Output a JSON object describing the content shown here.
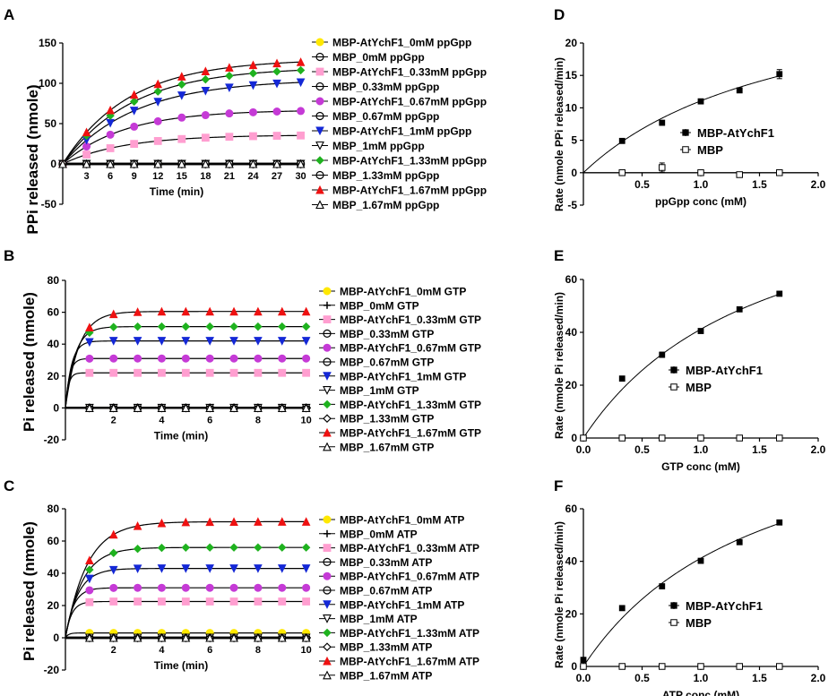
{
  "chart_data": [
    {
      "panel": "A",
      "type": "line",
      "xlabel": "Time (min)",
      "ylabel": "PPi released (nmole)",
      "xlim": [
        0,
        30.5
      ],
      "ylim": [
        -50,
        150
      ],
      "xticks": [
        3,
        6,
        9,
        12,
        15,
        18,
        21,
        24,
        27,
        30
      ],
      "yticks": [
        -50,
        0,
        50,
        100,
        150
      ],
      "x": [
        0,
        3,
        6,
        9,
        12,
        15,
        18,
        21,
        24,
        27,
        30
      ],
      "series": [
        {
          "name": "MBP-AtYchF1_0mM ppGpp",
          "marker": "circle",
          "color": "#ffe800",
          "plateau": 0,
          "k": 0
        },
        {
          "name": "MBP_0mM ppGpp",
          "marker": "circle-line",
          "color": "#000000",
          "plateau": 0,
          "k": 0
        },
        {
          "name": "MBP-AtYchF1_0.33mM ppGpp",
          "marker": "square",
          "color": "#ff9ed0",
          "plateau": 36,
          "k": 0.13
        },
        {
          "name": "MBP_0.33mM ppGpp",
          "marker": "circle-line",
          "color": "#000000",
          "plateau": 0,
          "k": 0
        },
        {
          "name": "MBP-AtYchF1_0.67mM ppGpp",
          "marker": "circle",
          "color": "#c53ad6",
          "plateau": 67,
          "k": 0.13
        },
        {
          "name": "MBP_0.67mM ppGpp",
          "marker": "circle-line",
          "color": "#000000",
          "plateau": 0,
          "k": 0
        },
        {
          "name": "MBP-AtYchF1_1mM ppGpp",
          "marker": "tri-down",
          "color": "#1428d6",
          "plateau": 105,
          "k": 0.11
        },
        {
          "name": "MBP_1mM ppGpp",
          "marker": "tri-down-open",
          "color": "#000000",
          "plateau": 0,
          "k": 0
        },
        {
          "name": "MBP-AtYchF1_1.33mM ppGpp",
          "marker": "diamond",
          "color": "#1fb21f",
          "plateau": 120,
          "k": 0.115
        },
        {
          "name": "MBP_1.33mM ppGpp",
          "marker": "circle-line",
          "color": "#000000",
          "plateau": 0,
          "k": 0
        },
        {
          "name": "MBP-AtYchF1_1.67mM ppGpp",
          "marker": "tri-up",
          "color": "#ee1111",
          "plateau": 130,
          "k": 0.12
        },
        {
          "name": "MBP_1.67mM ppGpp",
          "marker": "tri-up-open",
          "color": "#000000",
          "plateau": 0,
          "k": 0
        }
      ]
    },
    {
      "panel": "B",
      "type": "line",
      "xlabel": "Time (min)",
      "ylabel": "Pi released (nmole)",
      "xlim": [
        0,
        10.2
      ],
      "ylim": [
        -20,
        80
      ],
      "xticks": [
        2,
        4,
        6,
        8,
        10
      ],
      "yticks": [
        -20,
        0,
        20,
        40,
        60,
        80
      ],
      "x": [
        1,
        2,
        3,
        4,
        5,
        6,
        7,
        8,
        9,
        10
      ],
      "series": [
        {
          "name": "MBP-AtYchF1_0mM GTP",
          "marker": "circle",
          "color": "#ffe800",
          "plateau": 0,
          "k": 0
        },
        {
          "name": "MBP_0mM GTP",
          "marker": "plus",
          "color": "#000000",
          "plateau": 0,
          "k": 0
        },
        {
          "name": "MBP-AtYchF1_0.33mM GTP",
          "marker": "square",
          "color": "#ff9ed0",
          "plateau": 22,
          "k": 8
        },
        {
          "name": "MBP_0.33mM GTP",
          "marker": "circle-line",
          "color": "#000000",
          "plateau": 0,
          "k": 0
        },
        {
          "name": "MBP-AtYchF1_0.67mM GTP",
          "marker": "circle",
          "color": "#c53ad6",
          "plateau": 31,
          "k": 6
        },
        {
          "name": "MBP_0.67mM GTP",
          "marker": "circle-line",
          "color": "#000000",
          "plateau": 0,
          "k": 0
        },
        {
          "name": "MBP-AtYchF1_1mM GTP",
          "marker": "tri-down",
          "color": "#1428d6",
          "plateau": 42,
          "k": 4
        },
        {
          "name": "MBP_1mM GTP",
          "marker": "tri-down-open",
          "color": "#000000",
          "plateau": 0,
          "k": 0
        },
        {
          "name": "MBP-AtYchF1_1.33mM GTP",
          "marker": "diamond",
          "color": "#1fb21f",
          "plateau": 51,
          "k": 2.6
        },
        {
          "name": "MBP_1.33mM GTP",
          "marker": "diamond-open",
          "color": "#000000",
          "plateau": 0,
          "k": 0
        },
        {
          "name": "MBP-AtYchF1_1.67mM GTP",
          "marker": "tri-up",
          "color": "#ee1111",
          "plateau": 60.5,
          "k": 1.8
        },
        {
          "name": "MBP_1.67mM GTP",
          "marker": "tri-up-open",
          "color": "#000000",
          "plateau": 0,
          "k": 0
        }
      ]
    },
    {
      "panel": "C",
      "type": "line",
      "xlabel": "Time (min)",
      "ylabel": "Pi released (nmole)",
      "xlim": [
        0,
        10.2
      ],
      "ylim": [
        -20,
        80
      ],
      "xticks": [
        2,
        4,
        6,
        8,
        10
      ],
      "yticks": [
        -20,
        0,
        20,
        40,
        60,
        80
      ],
      "x": [
        1,
        2,
        3,
        4,
        5,
        6,
        7,
        8,
        9,
        10
      ],
      "series": [
        {
          "name": "MBP-AtYchF1_0mM ATP",
          "marker": "circle",
          "color": "#ffe800",
          "plateau": 3,
          "k": 8
        },
        {
          "name": "MBP_0mM ATP",
          "marker": "plus",
          "color": "#000000",
          "plateau": 0,
          "k": 0
        },
        {
          "name": "MBP-AtYchF1_0.33mM ATP",
          "marker": "square",
          "color": "#ff9ed0",
          "plateau": 22.5,
          "k": 4
        },
        {
          "name": "MBP_0.33mM ATP",
          "marker": "circle-line",
          "color": "#000000",
          "plateau": 0,
          "k": 0
        },
        {
          "name": "MBP-AtYchF1_0.67mM ATP",
          "marker": "circle",
          "color": "#c53ad6",
          "plateau": 31,
          "k": 3
        },
        {
          "name": "MBP_0.67mM ATP",
          "marker": "circle-line",
          "color": "#000000",
          "plateau": 0,
          "k": 0
        },
        {
          "name": "MBP-AtYchF1_1mM ATP",
          "marker": "tri-down",
          "color": "#1428d6",
          "plateau": 43,
          "k": 1.9
        },
        {
          "name": "MBP_1mM ATP",
          "marker": "tri-down-open",
          "color": "#000000",
          "plateau": 0,
          "k": 0
        },
        {
          "name": "MBP-AtYchF1_1.33mM ATP",
          "marker": "diamond",
          "color": "#1fb21f",
          "plateau": 56,
          "k": 1.4
        },
        {
          "name": "MBP_1.33mM ATP",
          "marker": "diamond-open",
          "color": "#000000",
          "plateau": 0,
          "k": 0
        },
        {
          "name": "MBP-AtYchF1_1.67mM ATP",
          "marker": "tri-up",
          "color": "#ee1111",
          "plateau": 72,
          "k": 1.1
        },
        {
          "name": "MBP_1.67mM ATP",
          "marker": "tri-up-open",
          "color": "#000000",
          "plateau": 0,
          "k": 0
        }
      ]
    },
    {
      "panel": "D",
      "type": "scatter",
      "xlabel": "ppGpp conc (mM)",
      "ylabel": "Rate (nmole PPi released/min)",
      "xlim": [
        0,
        2.0
      ],
      "ylim": [
        -5,
        20
      ],
      "xticks": [
        "0.5",
        "1.0",
        "1.5",
        "2.0"
      ],
      "yticks": [
        -5,
        0,
        5,
        10,
        15,
        20
      ],
      "fit": {
        "vmax": 31,
        "km": 1.8
      },
      "series": [
        {
          "name": "MBP-AtYchF1",
          "marker": "square",
          "color": "#000000",
          "x": [
            0.33,
            0.67,
            1.0,
            1.33,
            1.67
          ],
          "values": [
            4.9,
            7.7,
            11.0,
            12.7,
            15.2
          ],
          "err": [
            0.3,
            0.3,
            0.3,
            0.3,
            0.7
          ]
        },
        {
          "name": "MBP",
          "marker": "square-open",
          "color": "#000000",
          "x": [
            0.33,
            0.67,
            1.0,
            1.33,
            1.67
          ],
          "values": [
            0,
            0.8,
            0,
            -0.3,
            0
          ],
          "err": [
            0,
            0.7,
            0,
            0,
            0
          ]
        }
      ]
    },
    {
      "panel": "E",
      "type": "scatter",
      "xlabel": "GTP conc (mM)",
      "ylabel": "Rate (nmole Pi released/min)",
      "xlim": [
        0,
        2.0
      ],
      "ylim": [
        0,
        60
      ],
      "xticks": [
        "0.0",
        "0.5",
        "1.0",
        "1.5",
        "2.0"
      ],
      "yticks": [
        0,
        20,
        40,
        60
      ],
      "fit": {
        "vmax": 105,
        "km": 1.55
      },
      "series": [
        {
          "name": "MBP-AtYchF1",
          "marker": "square",
          "color": "#000000",
          "x": [
            0.33,
            0.67,
            1.0,
            1.33,
            1.67
          ],
          "values": [
            22.5,
            31.5,
            40.5,
            48.7,
            54.6
          ],
          "err": [
            0.5,
            1,
            0.5,
            0.5,
            0.5
          ]
        },
        {
          "name": "MBP",
          "marker": "square-open",
          "color": "#000000",
          "x": [
            0,
            0.33,
            0.67,
            1.0,
            1.33,
            1.67
          ],
          "values": [
            0,
            0,
            0,
            0,
            0,
            0
          ],
          "err": [
            0,
            0,
            0,
            0,
            0,
            0
          ]
        }
      ]
    },
    {
      "panel": "F",
      "type": "scatter",
      "xlabel": "ATP conc (mM)",
      "ylabel": "Rate (nmole Pi released/min)",
      "xlim": [
        0,
        2.0
      ],
      "ylim": [
        0,
        60
      ],
      "xticks": [
        "0.0",
        "0.5",
        "1.0",
        "1.5",
        "2.0"
      ],
      "yticks": [
        0,
        20,
        40,
        60
      ],
      "fit": {
        "vmax": 105,
        "km": 1.55
      },
      "series": [
        {
          "name": "MBP-AtYchF1",
          "marker": "square",
          "color": "#000000",
          "x": [
            0,
            0.33,
            0.67,
            1.0,
            1.33,
            1.67
          ],
          "values": [
            2.5,
            22.2,
            30.5,
            40.2,
            47.3,
            54.8
          ],
          "err": [
            0,
            0.5,
            0.5,
            0.5,
            0.5,
            0.5
          ]
        },
        {
          "name": "MBP",
          "marker": "square-open",
          "color": "#000000",
          "x": [
            0,
            0.33,
            0.67,
            1.0,
            1.33,
            1.67
          ],
          "values": [
            0,
            0,
            0,
            0,
            0,
            0
          ],
          "err": [
            0,
            0,
            0,
            0,
            0,
            0
          ]
        }
      ]
    }
  ]
}
